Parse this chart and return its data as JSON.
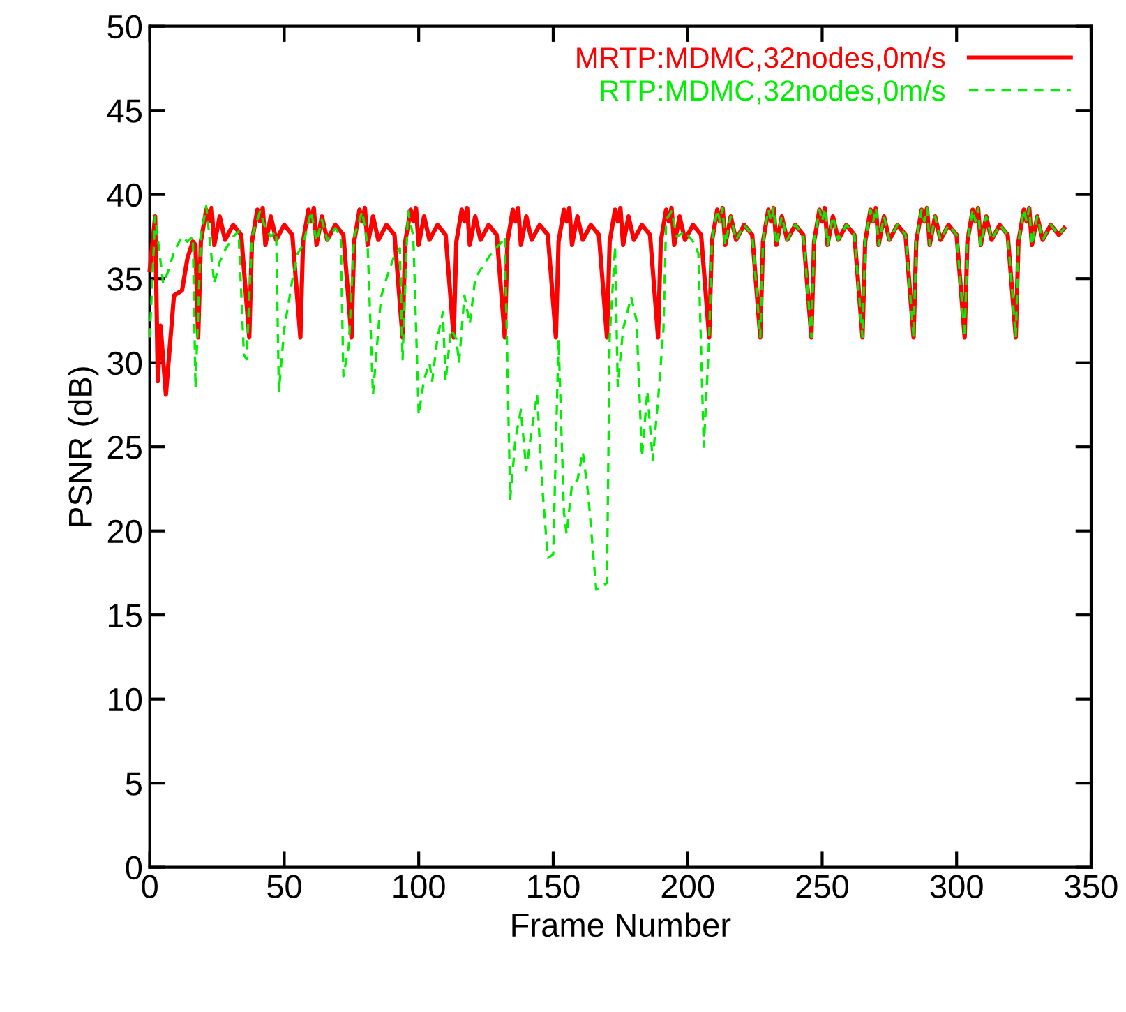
{
  "chart_data": {
    "type": "line",
    "xlabel": "Frame Number",
    "ylabel": "PSNR (dB)",
    "xlim": [
      0,
      350
    ],
    "ylim": [
      0,
      50
    ],
    "xticks": [
      0,
      50,
      100,
      150,
      200,
      250,
      300,
      350
    ],
    "yticks": [
      0,
      5,
      10,
      15,
      20,
      25,
      30,
      35,
      40,
      45,
      50
    ],
    "grid": false,
    "legend": "top right",
    "series": [
      {
        "name": "MRTP:MDMC,32nodes,0m/s",
        "color": "#ff0000",
        "line_style": "solid",
        "x": [
          0,
          2,
          3,
          4,
          6,
          9,
          12,
          14,
          16,
          17,
          18,
          19,
          21,
          22,
          23,
          24,
          26,
          28,
          31,
          34,
          37,
          38,
          40,
          41,
          42,
          43,
          45,
          47,
          50,
          53,
          56,
          57,
          59,
          60,
          61,
          62,
          64,
          66,
          69,
          72,
          75,
          76,
          78,
          79,
          80,
          81,
          83,
          85,
          88,
          91,
          94,
          95,
          97,
          98,
          99,
          100,
          102,
          104,
          107,
          110,
          113,
          114,
          116,
          117,
          118,
          119,
          121,
          123,
          126,
          129,
          132,
          133,
          135,
          136,
          137,
          138,
          140,
          142,
          145,
          148,
          151,
          152,
          154,
          155,
          156,
          157,
          159,
          161,
          164,
          167,
          170,
          171,
          173,
          174,
          175,
          176,
          178,
          180,
          183,
          186,
          189,
          190,
          192,
          193,
          194,
          195,
          197,
          199,
          202,
          205,
          208,
          209,
          211,
          212,
          213,
          214,
          216,
          218,
          221,
          224,
          227,
          228,
          230,
          231,
          232,
          233,
          235,
          237,
          240,
          243,
          246,
          247,
          249,
          250,
          251,
          252,
          254,
          256,
          259,
          262,
          265,
          266,
          268,
          269,
          270,
          271,
          273,
          275,
          278,
          281,
          284,
          285,
          287,
          288,
          289,
          290,
          292,
          294,
          297,
          300,
          303,
          304,
          306,
          307,
          308,
          309,
          311,
          313,
          316,
          319,
          322,
          323,
          325,
          326,
          327,
          328,
          330,
          332,
          335,
          338,
          340
        ],
        "values": [
          35.5,
          38.7,
          28.9,
          32.2,
          28.1,
          34.0,
          34.3,
          36.2,
          37.2,
          37.0,
          31.5,
          37.2,
          39.1,
          38.4,
          39.2,
          37.0,
          38.7,
          37.3,
          38.2,
          37.6,
          31.5,
          37.2,
          39.1,
          38.4,
          39.2,
          37.0,
          38.7,
          37.3,
          38.2,
          37.6,
          31.5,
          37.2,
          39.1,
          38.4,
          39.2,
          37.0,
          38.7,
          37.3,
          38.2,
          37.6,
          31.5,
          37.2,
          39.1,
          38.4,
          39.2,
          37.0,
          38.7,
          37.3,
          38.2,
          37.6,
          31.5,
          37.2,
          39.1,
          38.4,
          39.2,
          37.0,
          38.7,
          37.3,
          38.2,
          37.6,
          31.5,
          37.2,
          39.1,
          38.4,
          39.2,
          37.0,
          38.7,
          37.3,
          38.2,
          37.6,
          31.5,
          37.2,
          39.1,
          38.4,
          39.2,
          37.0,
          38.7,
          37.3,
          38.2,
          37.6,
          31.5,
          37.2,
          39.1,
          38.4,
          39.2,
          37.0,
          38.7,
          37.3,
          38.2,
          37.6,
          31.5,
          37.2,
          39.1,
          38.4,
          39.2,
          37.0,
          38.7,
          37.3,
          38.2,
          37.6,
          31.5,
          37.2,
          39.1,
          38.4,
          39.2,
          37.0,
          38.7,
          37.3,
          38.2,
          37.6,
          31.5,
          37.2,
          39.1,
          38.4,
          39.2,
          37.0,
          38.7,
          37.3,
          38.2,
          37.6,
          31.5,
          37.2,
          39.1,
          38.4,
          39.2,
          37.0,
          38.7,
          37.3,
          38.2,
          37.6,
          31.5,
          37.2,
          39.1,
          38.4,
          39.2,
          37.0,
          38.7,
          37.3,
          38.2,
          37.6,
          31.5,
          37.2,
          39.1,
          38.4,
          39.2,
          37.0,
          38.7,
          37.3,
          38.2,
          37.6,
          31.5,
          37.2,
          39.1,
          38.4,
          39.2,
          37.0,
          38.7,
          37.3,
          38.2,
          37.6,
          31.5,
          37.2,
          39.1,
          38.4,
          39.2,
          37.0,
          38.7,
          37.3,
          38.2,
          37.6,
          31.5,
          37.2,
          39.1,
          38.4,
          39.2,
          37.0,
          38.7,
          37.3,
          38.2,
          37.6,
          38.0
        ]
      },
      {
        "name": "RTP:MDMC,32nodes,0m/s",
        "color": "#00ee00",
        "line_style": "dashed",
        "x": [
          0,
          2,
          5,
          7,
          9,
          12,
          14,
          16,
          17,
          19,
          21,
          24,
          26,
          28,
          31,
          33,
          35,
          36,
          38,
          41,
          43,
          45,
          47,
          48,
          50,
          53,
          55,
          57,
          60,
          62,
          64,
          66,
          69,
          71,
          72,
          74,
          76,
          77,
          79,
          81,
          83,
          86,
          88,
          91,
          93,
          94,
          96,
          98,
          100,
          102,
          104,
          105,
          107,
          109,
          110,
          112,
          114,
          115,
          117,
          119,
          121,
          124,
          127,
          131,
          132,
          134,
          136,
          138,
          140,
          142,
          144,
          146,
          148,
          150,
          152,
          154,
          155,
          157,
          159,
          161,
          163,
          166,
          168,
          170,
          171,
          173,
          174,
          176,
          179,
          181,
          183,
          185,
          187,
          189,
          191,
          192,
          194,
          196,
          199,
          202,
          204,
          206,
          208,
          209,
          211,
          212,
          213,
          214,
          216,
          218,
          221,
          224,
          227,
          228,
          230,
          231,
          232,
          233,
          235,
          237,
          240,
          243,
          246,
          247,
          249,
          250,
          251,
          252,
          254,
          256,
          259,
          262,
          265,
          266,
          268,
          269,
          270,
          271,
          273,
          275,
          278,
          281,
          284,
          285,
          287,
          288,
          289,
          290,
          292,
          294,
          297,
          300,
          303,
          304,
          306,
          307,
          308,
          309,
          311,
          313,
          316,
          319,
          322,
          323,
          325,
          326,
          327,
          328,
          330,
          332,
          335,
          338,
          340
        ],
        "values": [
          31.5,
          38.7,
          34.7,
          35.5,
          36.6,
          37.5,
          37.2,
          37.5,
          28.5,
          37.5,
          39.3,
          34.7,
          36.0,
          36.7,
          37.5,
          37.8,
          30.5,
          30.2,
          37.5,
          39.0,
          38.0,
          37.5,
          37.8,
          28.3,
          32.0,
          34.9,
          36.5,
          37.0,
          39.0,
          37.2,
          38.5,
          37.3,
          38.0,
          37.5,
          29.2,
          31.0,
          37.5,
          38.0,
          39.0,
          37.0,
          28.1,
          33.9,
          35.0,
          36.4,
          36.8,
          30.2,
          39.0,
          37.5,
          26.9,
          29.0,
          30.0,
          28.9,
          31.5,
          33.0,
          28.9,
          32.0,
          31.4,
          30.0,
          34.0,
          32.3,
          35.0,
          35.8,
          36.5,
          37.2,
          37.5,
          21.9,
          25.5,
          27.2,
          23.6,
          26.0,
          28.1,
          22.5,
          18.4,
          18.6,
          31.4,
          21.1,
          19.8,
          22.8,
          23.0,
          24.7,
          22.2,
          16.5,
          16.7,
          16.9,
          31.5,
          36.9,
          28.6,
          32.0,
          33.9,
          32.5,
          24.4,
          28.3,
          24.2,
          27.8,
          32.0,
          38.5,
          39.0,
          37.5,
          37.8,
          37.2,
          36.5,
          25.0,
          31.5,
          37.2,
          39.1,
          38.4,
          39.2,
          37.0,
          38.7,
          37.3,
          38.2,
          37.6,
          31.5,
          37.2,
          39.1,
          38.4,
          39.2,
          37.0,
          38.7,
          37.3,
          38.2,
          37.6,
          31.5,
          37.2,
          39.1,
          38.4,
          39.2,
          37.0,
          38.7,
          37.3,
          38.2,
          37.6,
          31.5,
          37.2,
          39.1,
          38.4,
          39.2,
          37.0,
          38.7,
          37.3,
          38.2,
          37.6,
          31.5,
          37.2,
          39.1,
          38.4,
          39.2,
          37.0,
          38.7,
          37.3,
          38.2,
          37.6,
          31.5,
          37.2,
          39.1,
          38.4,
          39.2,
          37.0,
          38.7,
          37.3,
          38.2,
          37.6,
          31.5,
          37.2,
          39.1,
          38.4,
          39.2,
          37.0,
          38.7,
          37.3,
          38.2,
          37.6,
          38.0
        ]
      }
    ]
  }
}
